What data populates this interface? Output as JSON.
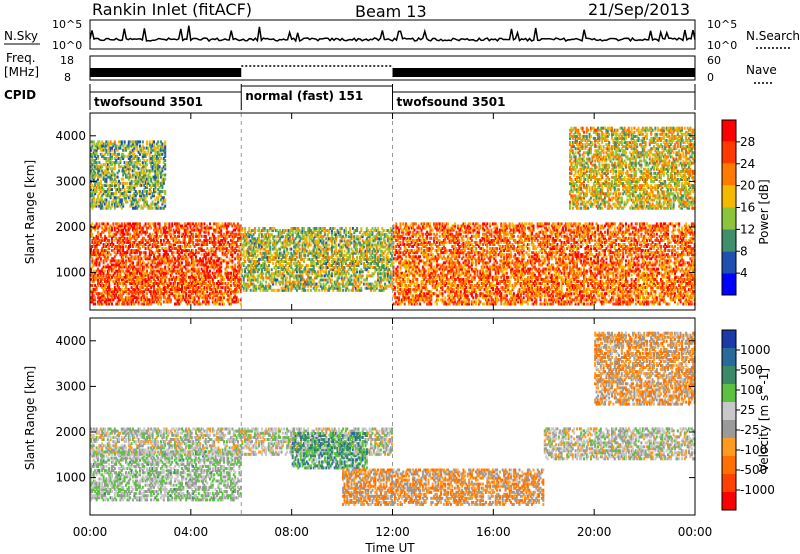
{
  "header": {
    "station": "Rankin Inlet (fitACF)",
    "beam": "Beam 13",
    "date": "21/Sep/2013"
  },
  "colors": {
    "power_scale": [
      "#0000ff",
      "#1f4fb0",
      "#3f8f6a",
      "#8cc43c",
      "#f5b800",
      "#ff7a00",
      "#ff3a00",
      "#ff0000"
    ],
    "velocity_scale": [
      "#1a3aa8",
      "#2a6a9a",
      "#3a8a6a",
      "#5cc040",
      "#c8c8c8",
      "#9a9a9a",
      "#ff9a20",
      "#ff7000",
      "#ff4000",
      "#ff0000"
    ],
    "ground_scatter": "#c0c0c0"
  },
  "panels": {
    "nsky_label": "N.Sky",
    "nsearch_label": "N.Search",
    "nsky_ticks": [
      "10^5",
      "10^0"
    ],
    "nsearch_ticks": [
      "10^5",
      "10^0"
    ],
    "freq_label": "Freq.",
    "freq_unit": "[MHz]",
    "freq_ticks": [
      "18",
      "8"
    ],
    "nave_label": "Nave",
    "nave_ticks": [
      "60",
      "0"
    ],
    "cpid_label": "CPID",
    "modes": [
      {
        "name": "twofsound 3501",
        "start_hour": 0,
        "end_hour": 6
      },
      {
        "name": "normal (fast) 151",
        "start_hour": 6,
        "end_hour": 12
      },
      {
        "name": "twofsound 3501",
        "start_hour": 12,
        "end_hour": 24
      }
    ]
  },
  "chart_data": [
    {
      "type": "heatmap",
      "title": "Power",
      "ylabel": "Slant Range [km]",
      "xlabel": "",
      "x_range_hours": [
        0,
        24
      ],
      "ylim": [
        180,
        4500
      ],
      "y_ticks": [
        1000,
        2000,
        3000,
        4000
      ],
      "colorbar_label": "Power [dB]",
      "colorbar_ticks": [
        "28",
        "24",
        "20",
        "16",
        "12",
        "8",
        "4"
      ],
      "colorbar_range": [
        0,
        30
      ],
      "scatter_regions": [
        {
          "t0": 0,
          "t1": 6,
          "r0": 300,
          "r1": 2100,
          "value": 24
        },
        {
          "t0": 0,
          "t1": 3,
          "r0": 2400,
          "r1": 3900,
          "value": 12
        },
        {
          "t0": 6,
          "t1": 12,
          "r0": 600,
          "r1": 2000,
          "value": 14
        },
        {
          "t0": 12,
          "t1": 24,
          "r0": 300,
          "r1": 2100,
          "value": 22
        },
        {
          "t0": 19,
          "t1": 24,
          "r0": 2400,
          "r1": 4200,
          "value": 16
        }
      ]
    },
    {
      "type": "heatmap",
      "title": "Velocity",
      "ylabel": "Slant Range [km]",
      "xlabel": "Time UT",
      "x_range_hours": [
        0,
        24
      ],
      "x_ticks": [
        "00:00",
        "04:00",
        "08:00",
        "12:00",
        "16:00",
        "20:00",
        "00:00"
      ],
      "ylim": [
        180,
        4500
      ],
      "y_ticks": [
        1000,
        2000,
        3000,
        4000
      ],
      "colorbar_label": "Velocity [m s^-1]",
      "colorbar_ticks": [
        "1000",
        "500",
        "100",
        "25",
        "-25",
        "-100",
        "-500",
        "-1000"
      ],
      "colorbar_range": [
        -1000,
        1000
      ],
      "scatter_regions": [
        {
          "t0": 0,
          "t1": 6,
          "r0": 500,
          "r1": 1600,
          "value": 120
        },
        {
          "t0": 0,
          "t1": 12,
          "r0": 1500,
          "r1": 2100,
          "value": 0
        },
        {
          "t0": 8,
          "t1": 11,
          "r0": 1200,
          "r1": 2000,
          "value": 400
        },
        {
          "t0": 10,
          "t1": 18,
          "r0": 400,
          "r1": 1200,
          "value": -300
        },
        {
          "t0": 18,
          "t1": 24,
          "r0": 1400,
          "r1": 2100,
          "value": 0
        },
        {
          "t0": 20,
          "t1": 24,
          "r0": 2600,
          "r1": 4200,
          "value": -250
        }
      ]
    }
  ]
}
